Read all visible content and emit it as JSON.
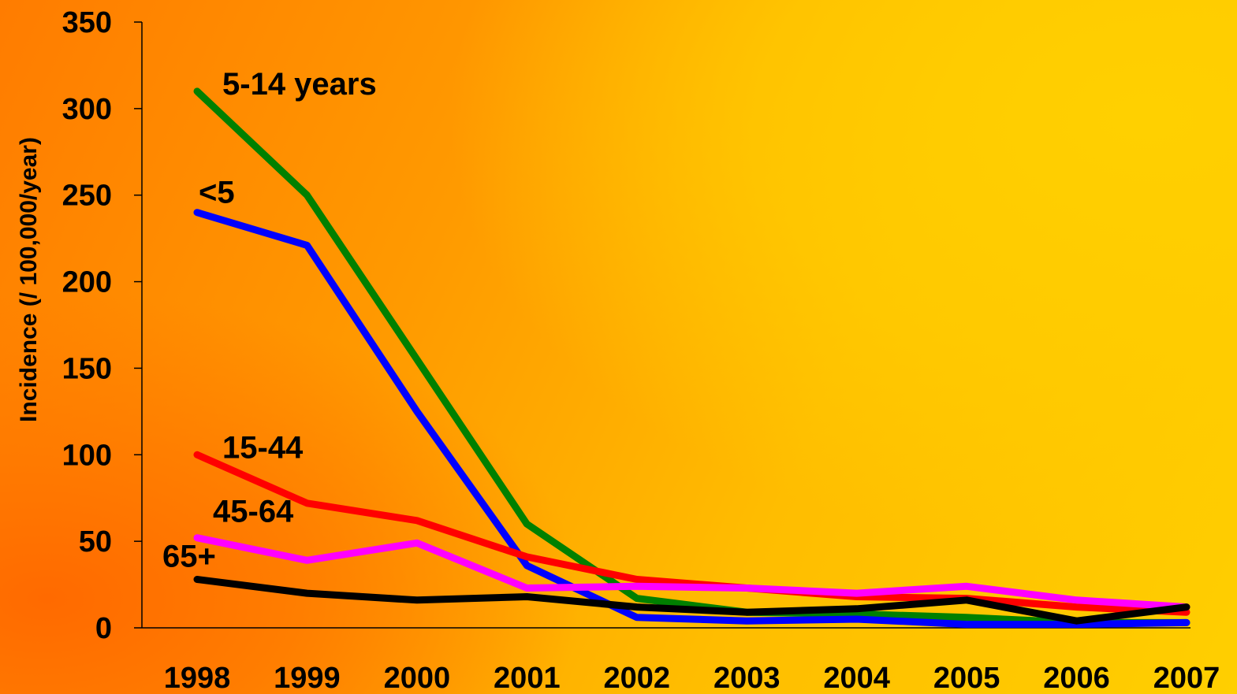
{
  "chart_data": {
    "type": "line",
    "title": "",
    "xlabel": "",
    "ylabel": "Incidence (/ 100,000/year)",
    "x": [
      "1998",
      "1999",
      "2000",
      "2001",
      "2002",
      "2003",
      "2004",
      "2005",
      "2006",
      "2007"
    ],
    "yticks": [
      "0",
      "50",
      "100",
      "150",
      "200",
      "250",
      "300",
      "350"
    ],
    "ylim": [
      0,
      350
    ],
    "grid": false,
    "legend": "none (series labeled inline near line starts)",
    "series": [
      {
        "name": "5-14 years",
        "color": "#008000",
        "values": [
          310,
          250,
          155,
          60,
          17,
          9,
          8,
          6,
          3,
          3
        ]
      },
      {
        "name": "<5",
        "color": "#0000ff",
        "values": [
          240,
          221,
          125,
          36,
          6,
          4,
          5,
          2,
          2,
          3
        ]
      },
      {
        "name": "15-44",
        "color": "#ff0000",
        "values": [
          100,
          72,
          62,
          41,
          28,
          23,
          18,
          17,
          12,
          9
        ]
      },
      {
        "name": "45-64",
        "color": "#ff00ff",
        "values": [
          52,
          39,
          49,
          23,
          24,
          23,
          20,
          24,
          16,
          12
        ]
      },
      {
        "name": "65+",
        "color": "#000000",
        "values": [
          28,
          20,
          16,
          18,
          12,
          9,
          11,
          16,
          4,
          12
        ]
      }
    ]
  }
}
